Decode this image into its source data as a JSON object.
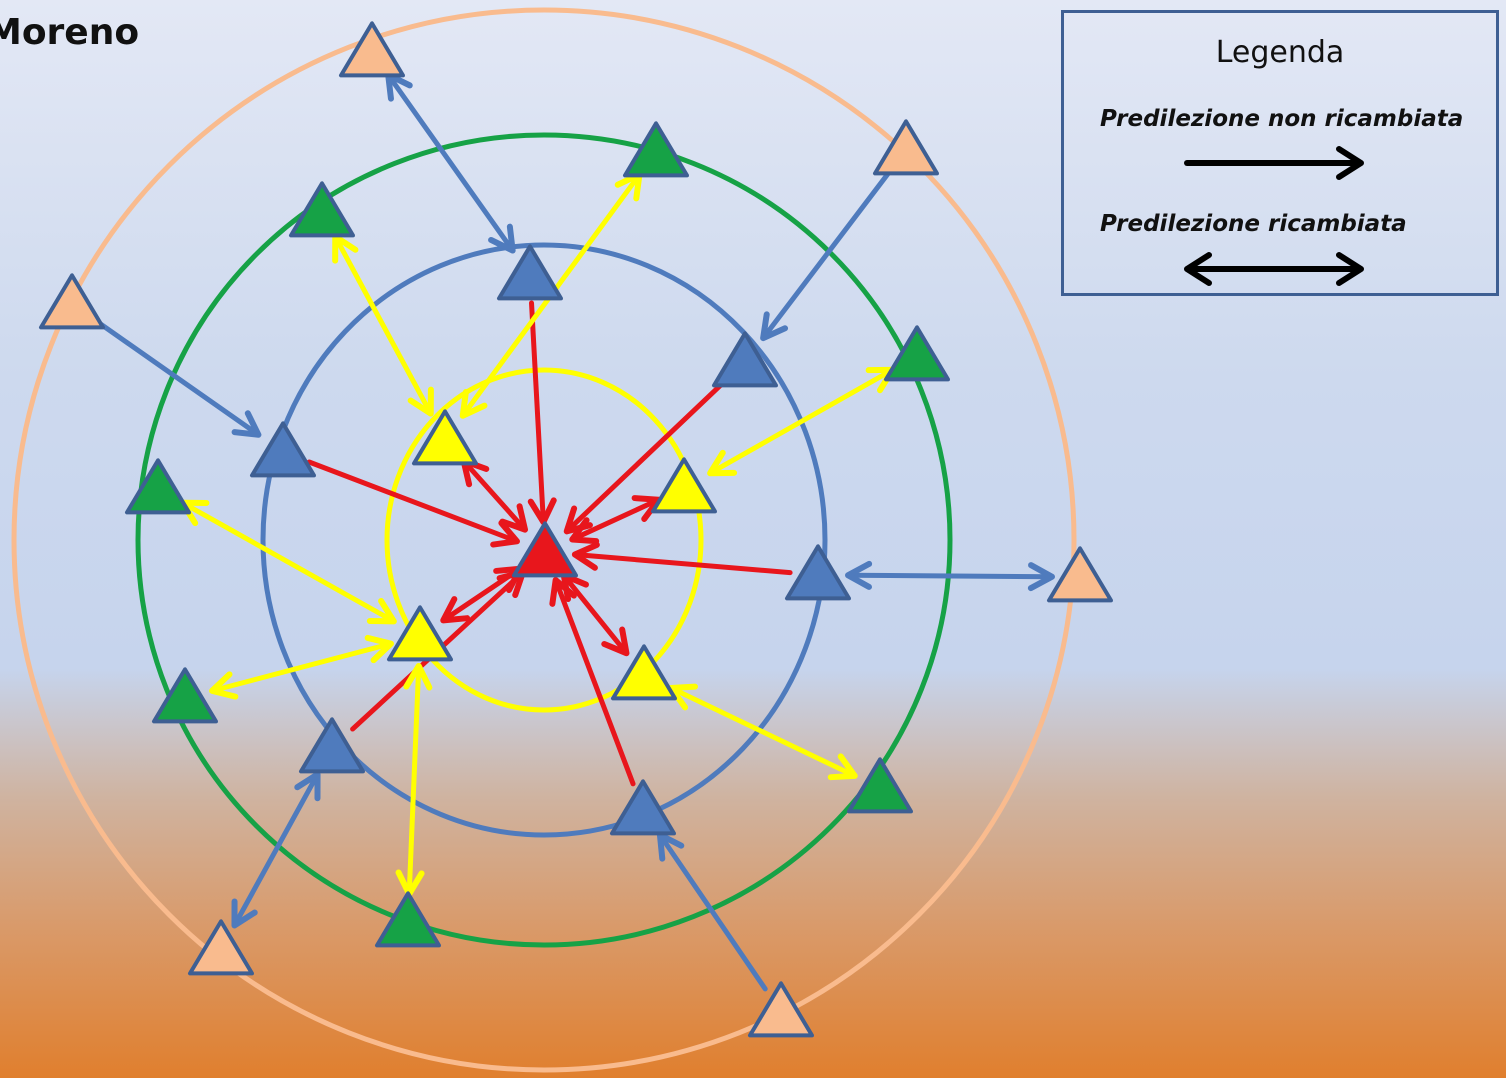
{
  "title": "Moreno",
  "legend": {
    "title": "Legenda",
    "unreciprocated_label": "Predilezione non ricambiata",
    "reciprocated_label": "Predilezione ricambiata"
  },
  "colors": {
    "center": "#e8161c",
    "inner": "#ffff00",
    "blue": "#4f7bbd",
    "green": "#16a246",
    "outer": "#f9bb8e",
    "red_arrow": "#e8161c",
    "yellow_arrow": "#ffff00",
    "blue_arrow": "#4f7bbd",
    "outline": "#3e5f93"
  },
  "rings": [
    "yellow",
    "blue",
    "green",
    "peach"
  ],
  "nodes": [
    {
      "id": "center",
      "ring": "center"
    },
    {
      "id": "y1",
      "ring": "yellow"
    },
    {
      "id": "y2",
      "ring": "yellow"
    },
    {
      "id": "y3",
      "ring": "yellow"
    },
    {
      "id": "y4",
      "ring": "yellow"
    },
    {
      "id": "b1",
      "ring": "blue"
    },
    {
      "id": "b2",
      "ring": "blue"
    },
    {
      "id": "b3",
      "ring": "blue"
    },
    {
      "id": "b4",
      "ring": "blue"
    },
    {
      "id": "b5",
      "ring": "blue"
    },
    {
      "id": "b6",
      "ring": "blue"
    },
    {
      "id": "g1",
      "ring": "green"
    },
    {
      "id": "g2",
      "ring": "green"
    },
    {
      "id": "g3",
      "ring": "green"
    },
    {
      "id": "g4",
      "ring": "green"
    },
    {
      "id": "g5",
      "ring": "green"
    },
    {
      "id": "g6",
      "ring": "green"
    },
    {
      "id": "g7",
      "ring": "green"
    },
    {
      "id": "p1",
      "ring": "peach"
    },
    {
      "id": "p2",
      "ring": "peach"
    },
    {
      "id": "p3",
      "ring": "peach"
    },
    {
      "id": "p4",
      "ring": "peach"
    },
    {
      "id": "p5",
      "ring": "peach"
    },
    {
      "id": "p6",
      "ring": "peach"
    }
  ],
  "edges": [
    {
      "from": "b1",
      "to": "center",
      "type": "one-way"
    },
    {
      "from": "b2",
      "to": "center",
      "type": "one-way"
    },
    {
      "from": "b3",
      "to": "center",
      "type": "one-way"
    },
    {
      "from": "b4",
      "to": "center",
      "type": "one-way"
    },
    {
      "from": "b5",
      "to": "center",
      "type": "one-way"
    },
    {
      "from": "b6",
      "to": "center",
      "type": "one-way"
    },
    {
      "from": "y1",
      "to": "center",
      "type": "mutual"
    },
    {
      "from": "y2",
      "to": "center",
      "type": "mutual"
    },
    {
      "from": "y3",
      "to": "center",
      "type": "mutual"
    },
    {
      "from": "y4",
      "to": "center",
      "type": "mutual"
    },
    {
      "from": "g1",
      "to": "y1",
      "type": "mutual"
    },
    {
      "from": "g2",
      "to": "y1",
      "type": "mutual"
    },
    {
      "from": "g3",
      "to": "y2",
      "type": "mutual"
    },
    {
      "from": "g4",
      "to": "y3",
      "type": "mutual"
    },
    {
      "from": "g5",
      "to": "y3",
      "type": "mutual"
    },
    {
      "from": "g6",
      "to": "y3",
      "type": "mutual"
    },
    {
      "from": "g7",
      "to": "y4",
      "type": "mutual"
    },
    {
      "from": "p1",
      "to": "b1",
      "type": "mutual"
    },
    {
      "from": "p2",
      "to": "b2",
      "type": "one-way"
    },
    {
      "from": "p3",
      "to": "b3",
      "type": "one-way"
    },
    {
      "from": "p4",
      "to": "b4",
      "type": "mutual"
    },
    {
      "from": "p5",
      "to": "b5",
      "type": "mutual"
    },
    {
      "from": "p6",
      "to": "b6",
      "type": "one-way"
    }
  ]
}
